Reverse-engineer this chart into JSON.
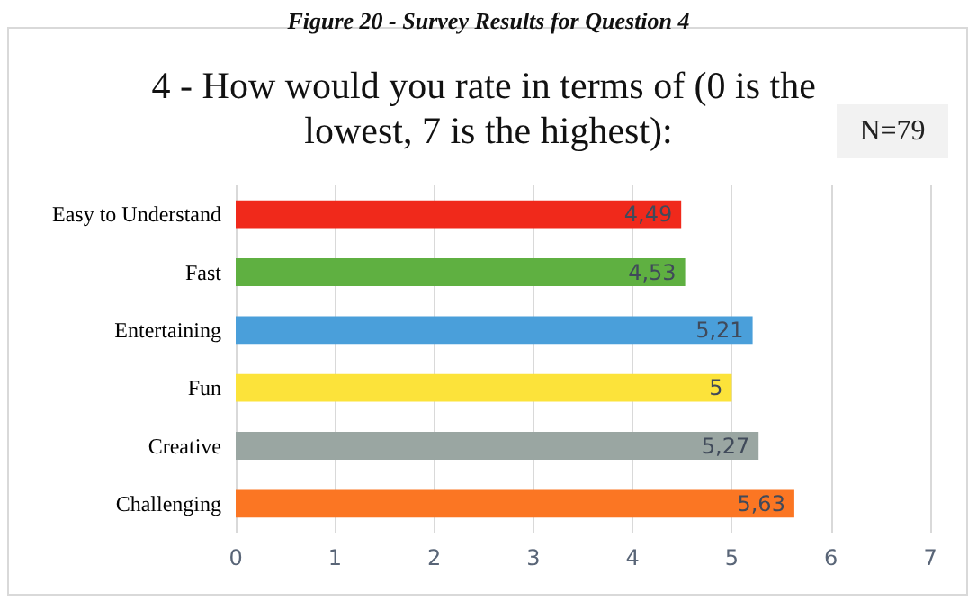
{
  "chart_data": {
    "type": "bar",
    "orientation": "horizontal",
    "title": "Figure 20 - Survey Results for Question 4",
    "subtitle": "4 - How would you rate in terms of (0 is the lowest, 7 is the highest):",
    "annotations": [
      "N=79"
    ],
    "categories": [
      "Easy to Understand",
      "Fast",
      "Entertaining",
      "Fun",
      "Creative",
      "Challenging"
    ],
    "values": [
      4.49,
      4.53,
      5.21,
      5,
      5.27,
      5.63
    ],
    "value_labels": [
      "4,49",
      "4,53",
      "5,21",
      "5",
      "5,27",
      "5,63"
    ],
    "colors": [
      "#f0291b",
      "#5fb041",
      "#4a9fda",
      "#fce33a",
      "#9aa6a2",
      "#fb7623"
    ],
    "xlim": [
      0,
      7
    ],
    "xticks": [
      0,
      1,
      2,
      3,
      4,
      5,
      6,
      7
    ],
    "grid": "x"
  }
}
